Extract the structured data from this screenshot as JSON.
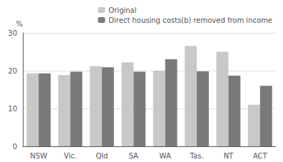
{
  "chart_data": {
    "type": "bar",
    "categories": [
      "NSW",
      "Vic.",
      "Qld",
      "SA",
      "WA",
      "Tas.",
      "NT",
      "ACT"
    ],
    "series": [
      {
        "name": "Original",
        "color": "#c8c8c8",
        "values": [
          19.3,
          18.8,
          21.2,
          22.2,
          20.0,
          26.5,
          25.0,
          11.0
        ]
      },
      {
        "name": "Direct housing costs(b) removed from income",
        "color": "#7a7a7a",
        "values": [
          19.3,
          19.7,
          20.9,
          19.7,
          23.0,
          19.8,
          18.7,
          16.0
        ]
      }
    ],
    "ylabel": "%",
    "ylim": [
      0,
      30
    ],
    "yticks": [
      0,
      10,
      20,
      30
    ],
    "grid": true,
    "legend": "upper right"
  }
}
